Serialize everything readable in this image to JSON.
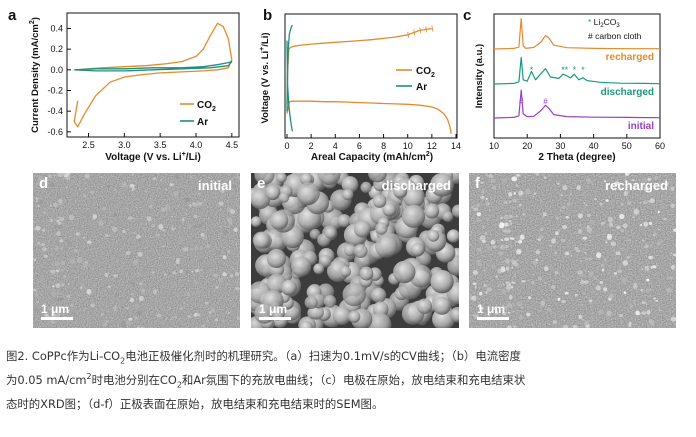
{
  "panels": {
    "a": {
      "letter": "a"
    },
    "b": {
      "letter": "b"
    },
    "c": {
      "letter": "c"
    }
  },
  "sem": {
    "d": {
      "letter": "d",
      "state": "initial",
      "scale": "1 μm"
    },
    "e": {
      "letter": "e",
      "state": "discharged",
      "scale": "1 μm"
    },
    "f": {
      "letter": "f",
      "state": "recharged",
      "scale": "1 μm"
    }
  },
  "caption": {
    "line1_a": "图2. CoPPc作为Li-CO",
    "line1_sub": "2",
    "line1_b": "电池正极催化剂时的机理研究。（a）扫速为0.1mV/s的CV曲线；（b）电流密度",
    "line2_a": "为0.05 mA/cm",
    "line2_sup": "2",
    "line2_b": "时电池分别在CO",
    "line2_sub": "2",
    "line2_c": "和Ar氛围下的充放电曲线；（c）电极在原始，放电结束和充电结束状",
    "line3": "态时的XRD图；（d-f）正极表面在原始，放电结束和充电结束时的SEM图。"
  },
  "colors": {
    "co2": "#E58A2E",
    "ar": "#1F8F7A",
    "initial": "#9A3FC8",
    "discharged": "#1A9A7C",
    "recharged": "#E58A2E"
  },
  "chart_data": [
    {
      "type": "line",
      "panel": "a",
      "xlabel": "Voltage (V vs. Li⁺/Li)",
      "ylabel": "Current Density (mA/cm²)",
      "xlim": [
        2.2,
        4.6
      ],
      "ylim": [
        -0.65,
        0.55
      ],
      "xticks": [
        "2.5",
        "3.0",
        "3.5",
        "4.0",
        "4.5"
      ],
      "xtick_values": [
        2.5,
        3.0,
        3.5,
        4.0,
        4.5
      ],
      "yticks": [
        "0.4",
        "0.2",
        "0.0",
        "-0.2",
        "-0.4",
        "-0.6"
      ],
      "ytick_values": [
        0.4,
        0.2,
        0.0,
        -0.2,
        -0.4,
        -0.6
      ],
      "legend": "bottom-right",
      "series": [
        {
          "name": "CO₂",
          "color": "#E58A2E",
          "x": [
            2.35,
            2.5,
            2.7,
            3.0,
            3.3,
            3.6,
            3.8,
            4.0,
            4.1,
            4.2,
            4.3,
            4.38,
            4.45,
            4.5,
            4.45,
            4.3,
            4.1,
            3.8,
            3.5,
            3.2,
            3.0,
            2.8,
            2.6,
            2.45,
            2.35,
            2.3,
            2.35
          ],
          "y": [
            0.0,
            0.01,
            0.02,
            0.03,
            0.04,
            0.06,
            0.08,
            0.13,
            0.2,
            0.33,
            0.45,
            0.42,
            0.3,
            0.1,
            0.02,
            0.0,
            -0.01,
            -0.02,
            -0.03,
            -0.05,
            -0.07,
            -0.12,
            -0.25,
            -0.42,
            -0.55,
            -0.5,
            -0.3
          ]
        },
        {
          "name": "Ar",
          "color": "#1F8F7A",
          "x": [
            2.3,
            2.6,
            3.0,
            3.4,
            3.8,
            4.1,
            4.3,
            4.45,
            4.5,
            4.45,
            4.2,
            3.8,
            3.4,
            3.0,
            2.6,
            2.3
          ],
          "y": [
            0.0,
            0.01,
            0.01,
            0.02,
            0.02,
            0.03,
            0.05,
            0.07,
            0.08,
            0.04,
            0.02,
            0.01,
            0.0,
            -0.01,
            -0.01,
            0.0
          ]
        }
      ]
    },
    {
      "type": "line",
      "panel": "b",
      "xlabel": "Areal Capacity (mAh/cm²)",
      "ylabel": "Voltage (V vs. Li⁺/Li)",
      "xlim": [
        0,
        14
      ],
      "ylim": [
        2.0,
        4.8
      ],
      "xticks": [
        "0",
        "2",
        "4",
        "6",
        "8",
        "10",
        "12",
        "14"
      ],
      "xtick_values": [
        0,
        2,
        4,
        6,
        8,
        10,
        12,
        14
      ],
      "legend": "right",
      "series": [
        {
          "name": "CO₂",
          "color": "#E58A2E",
          "x": [
            0.0,
            0.2,
            0.5,
            1,
            2,
            3,
            4,
            5,
            6,
            7,
            8,
            9,
            10,
            11,
            11.6,
            12,
            12.5,
            13.0,
            13.3,
            13.5,
            13.6
          ],
          "y": [
            2.55,
            2.82,
            2.83,
            2.83,
            2.83,
            2.82,
            2.82,
            2.81,
            2.8,
            2.79,
            2.78,
            2.77,
            2.76,
            2.74,
            2.72,
            2.7,
            2.65,
            2.55,
            2.42,
            2.25,
            2.1
          ]
        },
        {
          "name": "CO₂ charge",
          "color": "#E58A2E",
          "x": [
            0.0,
            0.05,
            0.15,
            0.3,
            0.6,
            1,
            2,
            3,
            4,
            5,
            6,
            7,
            8,
            9,
            10,
            10.5,
            11,
            11.5,
            12.0
          ],
          "y": [
            2.75,
            3.5,
            4.0,
            4.05,
            4.07,
            4.09,
            4.12,
            4.14,
            4.16,
            4.18,
            4.2,
            4.22,
            4.25,
            4.28,
            4.33,
            4.38,
            4.43,
            4.45,
            4.47
          ]
        },
        {
          "name": "Ar",
          "color": "#1F8F7A",
          "x": [
            0.0,
            0.05,
            0.15,
            0.25,
            0.35,
            0.45
          ],
          "y": [
            4.2,
            3.2,
            2.75,
            2.5,
            2.3,
            2.15
          ]
        },
        {
          "name": "Ar charge",
          "color": "#1F8F7A",
          "x": [
            0.0,
            0.04,
            0.1,
            0.2,
            0.35,
            0.45
          ],
          "y": [
            2.6,
            3.4,
            4.0,
            4.35,
            4.5,
            4.55
          ]
        }
      ]
    },
    {
      "type": "line",
      "panel": "c",
      "xlabel": "2 Theta (degree)",
      "ylabel": "Intensity (a.u.)",
      "xlim": [
        10,
        60
      ],
      "xticks": [
        "10",
        "20",
        "30",
        "40",
        "50",
        "60"
      ],
      "xtick_values": [
        10,
        20,
        30,
        40,
        50,
        60
      ],
      "legend": "top-right",
      "legend_entries": [
        "Li₂CO₃",
        "# carbon cloth"
      ],
      "series": [
        {
          "name": "recharged",
          "color": "#E58A2E",
          "x": [
            10,
            16,
            17.5,
            18.2,
            18.8,
            19.6,
            22,
            24,
            25.5,
            26.5,
            28,
            32,
            40,
            50,
            60
          ],
          "y": [
            0,
            0.02,
            0.06,
            0.95,
            0.1,
            0.02,
            0.05,
            0.2,
            0.42,
            0.35,
            0.12,
            0.04,
            0.02,
            0.01,
            0.01
          ]
        },
        {
          "name": "discharged",
          "color": "#1A9A7C",
          "x": [
            10,
            16,
            17.5,
            18.2,
            18.8,
            20,
            21.3,
            22.5,
            24,
            25.5,
            27,
            29.5,
            30.8,
            31.8,
            33,
            34.2,
            35.5,
            36.8,
            38,
            39.5,
            42,
            48,
            55,
            60
          ],
          "y": [
            0,
            0.02,
            0.08,
            0.95,
            0.15,
            0.1,
            0.45,
            0.15,
            0.35,
            0.55,
            0.25,
            0.2,
            0.35,
            0.3,
            0.22,
            0.35,
            0.15,
            0.22,
            0.12,
            0.1,
            0.06,
            0.03,
            0.02,
            0.01
          ]
        },
        {
          "name": "initial",
          "color": "#9A3FC8",
          "x": [
            10,
            16,
            17.5,
            18.2,
            18.8,
            20,
            22,
            24,
            25.5,
            26.5,
            28,
            32,
            40,
            50,
            60
          ],
          "y": [
            0,
            0.02,
            0.08,
            1.0,
            0.15,
            0.05,
            0.06,
            0.25,
            0.45,
            0.35,
            0.12,
            0.05,
            0.03,
            0.02,
            0.01
          ]
        }
      ],
      "series_labels": [
        "recharged",
        "discharged",
        "initial"
      ]
    }
  ]
}
